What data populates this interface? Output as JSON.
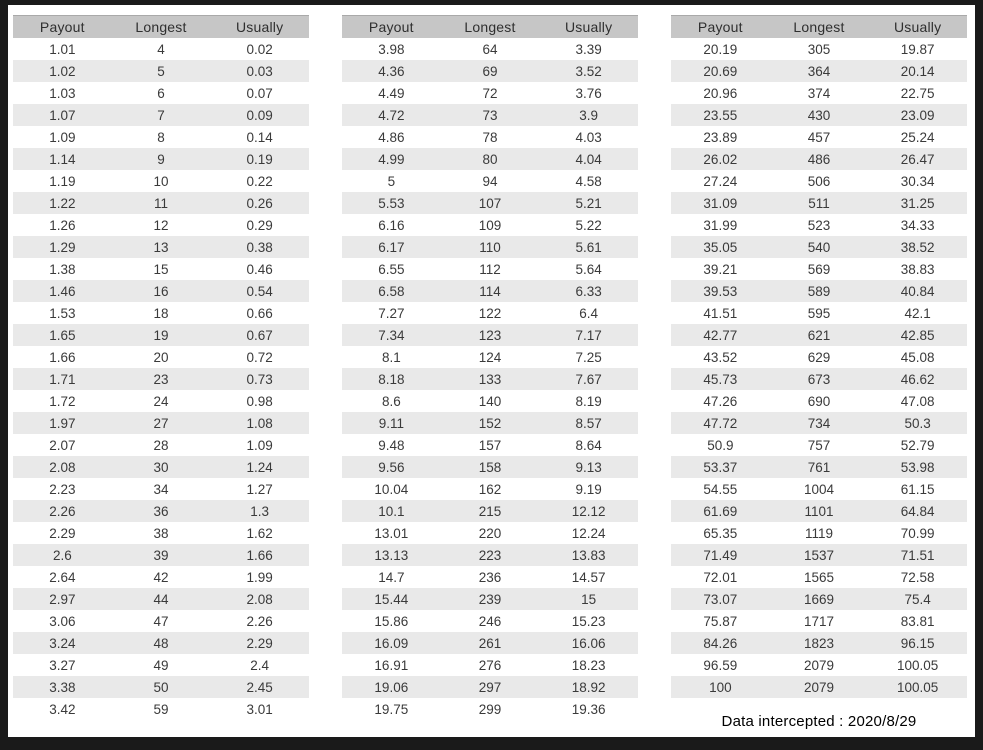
{
  "colors": {
    "frame": "#1a1a1a",
    "page_bg": "#ffffff",
    "header_bg": "#c6c6c6",
    "row_alt_bg": "#e9e9e9",
    "text": "#3a3a3a"
  },
  "columns": [
    "Payout",
    "Longest",
    "Usually"
  ],
  "tables": [
    {
      "rows": [
        [
          "1.01",
          "4",
          "0.02"
        ],
        [
          "1.02",
          "5",
          "0.03"
        ],
        [
          "1.03",
          "6",
          "0.07"
        ],
        [
          "1.07",
          "7",
          "0.09"
        ],
        [
          "1.09",
          "8",
          "0.14"
        ],
        [
          "1.14",
          "9",
          "0.19"
        ],
        [
          "1.19",
          "10",
          "0.22"
        ],
        [
          "1.22",
          "11",
          "0.26"
        ],
        [
          "1.26",
          "12",
          "0.29"
        ],
        [
          "1.29",
          "13",
          "0.38"
        ],
        [
          "1.38",
          "15",
          "0.46"
        ],
        [
          "1.46",
          "16",
          "0.54"
        ],
        [
          "1.53",
          "18",
          "0.66"
        ],
        [
          "1.65",
          "19",
          "0.67"
        ],
        [
          "1.66",
          "20",
          "0.72"
        ],
        [
          "1.71",
          "23",
          "0.73"
        ],
        [
          "1.72",
          "24",
          "0.98"
        ],
        [
          "1.97",
          "27",
          "1.08"
        ],
        [
          "2.07",
          "28",
          "1.09"
        ],
        [
          "2.08",
          "30",
          "1.24"
        ],
        [
          "2.23",
          "34",
          "1.27"
        ],
        [
          "2.26",
          "36",
          "1.3"
        ],
        [
          "2.29",
          "38",
          "1.62"
        ],
        [
          "2.6",
          "39",
          "1.66"
        ],
        [
          "2.64",
          "42",
          "1.99"
        ],
        [
          "2.97",
          "44",
          "2.08"
        ],
        [
          "3.06",
          "47",
          "2.26"
        ],
        [
          "3.24",
          "48",
          "2.29"
        ],
        [
          "3.27",
          "49",
          "2.4"
        ],
        [
          "3.38",
          "50",
          "2.45"
        ],
        [
          "3.42",
          "59",
          "3.01"
        ]
      ]
    },
    {
      "rows": [
        [
          "3.98",
          "64",
          "3.39"
        ],
        [
          "4.36",
          "69",
          "3.52"
        ],
        [
          "4.49",
          "72",
          "3.76"
        ],
        [
          "4.72",
          "73",
          "3.9"
        ],
        [
          "4.86",
          "78",
          "4.03"
        ],
        [
          "4.99",
          "80",
          "4.04"
        ],
        [
          "5",
          "94",
          "4.58"
        ],
        [
          "5.53",
          "107",
          "5.21"
        ],
        [
          "6.16",
          "109",
          "5.22"
        ],
        [
          "6.17",
          "110",
          "5.61"
        ],
        [
          "6.55",
          "112",
          "5.64"
        ],
        [
          "6.58",
          "114",
          "6.33"
        ],
        [
          "7.27",
          "122",
          "6.4"
        ],
        [
          "7.34",
          "123",
          "7.17"
        ],
        [
          "8.1",
          "124",
          "7.25"
        ],
        [
          "8.18",
          "133",
          "7.67"
        ],
        [
          "8.6",
          "140",
          "8.19"
        ],
        [
          "9.11",
          "152",
          "8.57"
        ],
        [
          "9.48",
          "157",
          "8.64"
        ],
        [
          "9.56",
          "158",
          "9.13"
        ],
        [
          "10.04",
          "162",
          "9.19"
        ],
        [
          "10.1",
          "215",
          "12.12"
        ],
        [
          "13.01",
          "220",
          "12.24"
        ],
        [
          "13.13",
          "223",
          "13.83"
        ],
        [
          "14.7",
          "236",
          "14.57"
        ],
        [
          "15.44",
          "239",
          "15"
        ],
        [
          "15.86",
          "246",
          "15.23"
        ],
        [
          "16.09",
          "261",
          "16.06"
        ],
        [
          "16.91",
          "276",
          "18.23"
        ],
        [
          "19.06",
          "297",
          "18.92"
        ],
        [
          "19.75",
          "299",
          "19.36"
        ]
      ]
    },
    {
      "rows": [
        [
          "20.19",
          "305",
          "19.87"
        ],
        [
          "20.69",
          "364",
          "20.14"
        ],
        [
          "20.96",
          "374",
          "22.75"
        ],
        [
          "23.55",
          "430",
          "23.09"
        ],
        [
          "23.89",
          "457",
          "25.24"
        ],
        [
          "26.02",
          "486",
          "26.47"
        ],
        [
          "27.24",
          "506",
          "30.34"
        ],
        [
          "31.09",
          "511",
          "31.25"
        ],
        [
          "31.99",
          "523",
          "34.33"
        ],
        [
          "35.05",
          "540",
          "38.52"
        ],
        [
          "39.21",
          "569",
          "38.83"
        ],
        [
          "39.53",
          "589",
          "40.84"
        ],
        [
          "41.51",
          "595",
          "42.1"
        ],
        [
          "42.77",
          "621",
          "42.85"
        ],
        [
          "43.52",
          "629",
          "45.08"
        ],
        [
          "45.73",
          "673",
          "46.62"
        ],
        [
          "47.26",
          "690",
          "47.08"
        ],
        [
          "47.72",
          "734",
          "50.3"
        ],
        [
          "50.9",
          "757",
          "52.79"
        ],
        [
          "53.37",
          "761",
          "53.98"
        ],
        [
          "54.55",
          "1004",
          "61.15"
        ],
        [
          "61.69",
          "1101",
          "64.84"
        ],
        [
          "65.35",
          "1119",
          "70.99"
        ],
        [
          "71.49",
          "1537",
          "71.51"
        ],
        [
          "72.01",
          "1565",
          "72.58"
        ],
        [
          "73.07",
          "1669",
          "75.4"
        ],
        [
          "75.87",
          "1717",
          "83.81"
        ],
        [
          "84.26",
          "1823",
          "96.15"
        ],
        [
          "96.59",
          "2079",
          "100.05"
        ],
        [
          "100",
          "2079",
          "100.05"
        ]
      ]
    }
  ],
  "footer": {
    "label": "Data intercepted : 2020/8/29"
  }
}
